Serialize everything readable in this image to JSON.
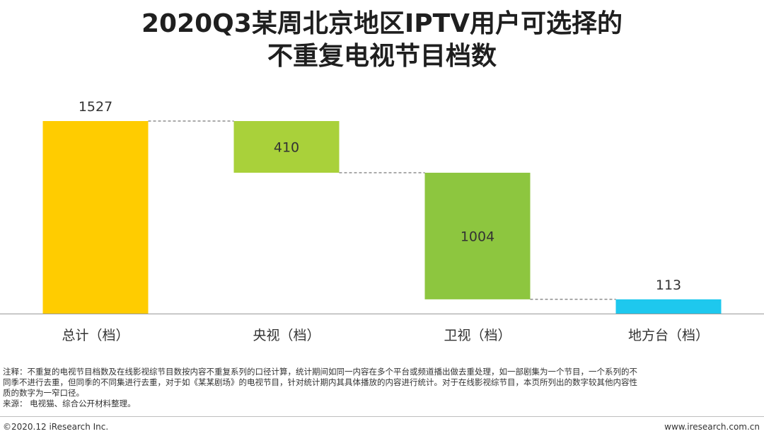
{
  "title_line1": "2020Q3某周北京地区IPTV用户可选择的",
  "title_line2": "不重复电视节目档数",
  "chart_data": {
    "type": "bar",
    "subtype": "waterfall",
    "categories": [
      "总计（档）",
      "央视（档）",
      "卫视（档）",
      "地方台（档）"
    ],
    "values": [
      1527,
      410,
      1004,
      113
    ],
    "data_labels": [
      "1527",
      "410",
      "1004",
      "113"
    ],
    "ylim": [
      0,
      1527
    ],
    "colors": [
      "#FFCC00",
      "#A9D13A",
      "#8DC63F",
      "#1EC8EE"
    ],
    "connector_style": "dashed"
  },
  "notes": {
    "line1": "注释：不重复的电视节目档数及在线影视综节目数按内容不重复系列的口径计算，统计期间如同一内容在多个平台或频道播出做去重处理，如一部剧集为一个节目，一个系列的不",
    "line2": "同季不进行去重，但同季的不同集进行去重，对于如《某某剧场》的电视节目，针对统计期内其具体播放的内容进行统计。对于在线影视综节目，本页所列出的数字较其他内容性",
    "line3": "质的数字为一窄口径。",
    "line4": "来源：  电视猫、综合公开材料整理。"
  },
  "footer": {
    "copyright": "©2020.12 iResearch Inc.",
    "website": "www.iresearch.com.cn"
  }
}
